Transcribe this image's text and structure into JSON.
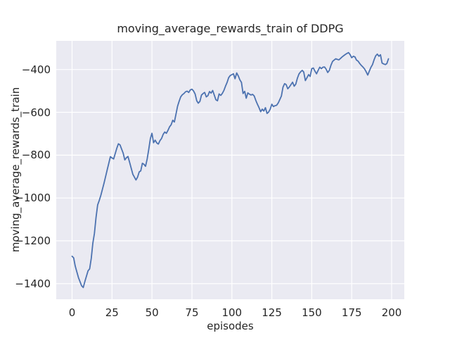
{
  "figure": {
    "title": "moving_average_rewards_train of DDPG",
    "xlabel": "episodes",
    "ylabel": "moving_average_rewards_train"
  },
  "style": {
    "plot_background": "#eaeaf2",
    "grid_color": "#ffffff",
    "line_color": "#4c72b0",
    "text_color": "#262626",
    "figure_background": "#ffffff"
  },
  "chart_data": {
    "type": "line",
    "title": "moving_average_rewards_train of DDPG",
    "xlabel": "episodes",
    "ylabel": "moving_average_rewards_train",
    "grid": true,
    "legend": false,
    "xlim": [
      -9.9,
      207.9
    ],
    "ylim": [
      -1472.9,
      -266.1
    ],
    "x_ticks": {
      "values": [
        0,
        25,
        50,
        75,
        100,
        125,
        150,
        175,
        200
      ],
      "labels": [
        "0",
        "25",
        "50",
        "75",
        "100",
        "125",
        "150",
        "175",
        "200"
      ]
    },
    "y_ticks": {
      "values": [
        -400,
        -600,
        -800,
        -1000,
        -1200,
        -1400
      ],
      "labels": [
        "−400",
        "−600",
        "−800",
        "−1000",
        "−1200",
        "−1400"
      ]
    },
    "series": [
      {
        "name": "moving_average_rewards_train",
        "color": "#4c72b0",
        "x": [
          0,
          1,
          2,
          4,
          6,
          7,
          8,
          10,
          11,
          12,
          13,
          14,
          15,
          16,
          17,
          18,
          20,
          22,
          24,
          25,
          26,
          28,
          29,
          30,
          32,
          33,
          34,
          35,
          36,
          38,
          40,
          41,
          42,
          43,
          44,
          45,
          46,
          47,
          48,
          49,
          50,
          51,
          52,
          53,
          54,
          55,
          56,
          57,
          58,
          59,
          60,
          61,
          62,
          63,
          64,
          65,
          66,
          67,
          68,
          69,
          70,
          71,
          72,
          73,
          74,
          75,
          76,
          77,
          78,
          79,
          80,
          81,
          82,
          83,
          84,
          85,
          86,
          87,
          88,
          89,
          90,
          91,
          92,
          93,
          94,
          95,
          96,
          97,
          98,
          99,
          100,
          101,
          102,
          103,
          104,
          105,
          106,
          107,
          108,
          109,
          110,
          111,
          112,
          113,
          114,
          115,
          116,
          117,
          118,
          119,
          120,
          121,
          122,
          123,
          124,
          125,
          126,
          127,
          128,
          129,
          130,
          131,
          132,
          133,
          134,
          135,
          136,
          137,
          138,
          139,
          140,
          141,
          142,
          143,
          144,
          145,
          146,
          147,
          148,
          149,
          150,
          151,
          152,
          153,
          154,
          155,
          156,
          157,
          158,
          159,
          160,
          161,
          162,
          163,
          164,
          165,
          166,
          167,
          168,
          169,
          170,
          171,
          172,
          173,
          174,
          175,
          176,
          177,
          178,
          179,
          180,
          181,
          182,
          183,
          184,
          185,
          186,
          187,
          188,
          189,
          190,
          191,
          192,
          193,
          194,
          195,
          196,
          197,
          198
        ],
        "y": [
          -1272,
          -1280,
          -1318,
          -1372,
          -1410,
          -1418,
          -1390,
          -1340,
          -1331,
          -1282,
          -1212,
          -1165,
          -1090,
          -1032,
          -1012,
          -988,
          -930,
          -868,
          -807,
          -813,
          -818,
          -768,
          -747,
          -752,
          -791,
          -822,
          -812,
          -806,
          -833,
          -889,
          -916,
          -902,
          -878,
          -873,
          -838,
          -843,
          -852,
          -818,
          -772,
          -722,
          -698,
          -742,
          -730,
          -743,
          -748,
          -732,
          -722,
          -703,
          -692,
          -698,
          -684,
          -668,
          -658,
          -637,
          -645,
          -610,
          -572,
          -548,
          -528,
          -518,
          -512,
          -504,
          -501,
          -507,
          -495,
          -492,
          -500,
          -514,
          -546,
          -557,
          -549,
          -519,
          -512,
          -507,
          -528,
          -522,
          -503,
          -510,
          -498,
          -520,
          -541,
          -546,
          -514,
          -521,
          -512,
          -498,
          -478,
          -460,
          -438,
          -428,
          -424,
          -420,
          -443,
          -416,
          -430,
          -448,
          -460,
          -512,
          -502,
          -534,
          -509,
          -515,
          -519,
          -516,
          -524,
          -545,
          -562,
          -578,
          -597,
          -585,
          -594,
          -578,
          -605,
          -599,
          -585,
          -562,
          -573,
          -569,
          -567,
          -556,
          -540,
          -524,
          -482,
          -466,
          -471,
          -490,
          -481,
          -470,
          -459,
          -478,
          -468,
          -440,
          -421,
          -411,
          -404,
          -412,
          -452,
          -438,
          -424,
          -432,
          -396,
          -393,
          -408,
          -420,
          -404,
          -389,
          -396,
          -389,
          -388,
          -399,
          -414,
          -404,
          -380,
          -362,
          -356,
          -350,
          -353,
          -355,
          -348,
          -341,
          -335,
          -330,
          -325,
          -321,
          -331,
          -345,
          -338,
          -341,
          -356,
          -361,
          -372,
          -381,
          -388,
          -397,
          -410,
          -426,
          -408,
          -390,
          -377,
          -355,
          -336,
          -328,
          -338,
          -331,
          -370,
          -374,
          -377,
          -372,
          -350
        ]
      }
    ]
  }
}
